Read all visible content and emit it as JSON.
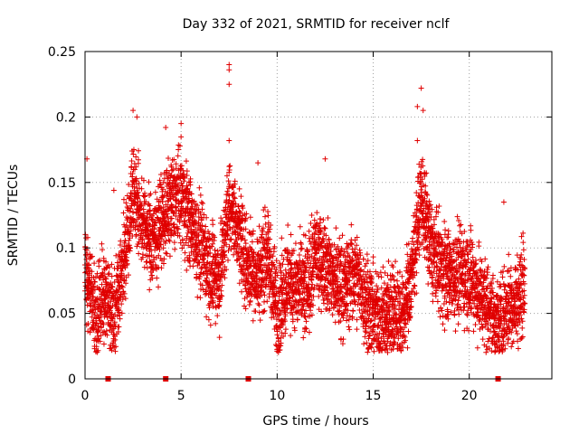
{
  "chart_data": {
    "type": "scatter",
    "title": "Day 332 of 2021, SRMTID for receiver nclf",
    "xlabel": "GPS time / hours",
    "ylabel": "SRMTID / TECUs",
    "xlim": [
      0,
      24.3
    ],
    "ylim": [
      0,
      0.25
    ],
    "x_ticks": [
      "0",
      "5",
      "10",
      "15",
      "20"
    ],
    "y_ticks": [
      "0",
      "0.05",
      "0.1",
      "0.15",
      "0.2",
      "0.25"
    ],
    "grid": true,
    "legend": "none",
    "marker": "plus",
    "color": "#e00000",
    "gap_markers_x": [
      1.2,
      4.2,
      8.5,
      21.5
    ],
    "profile": [
      {
        "x": 0.0,
        "y": 0.085
      },
      {
        "x": 0.3,
        "y": 0.065
      },
      {
        "x": 0.6,
        "y": 0.045
      },
      {
        "x": 1.0,
        "y": 0.065
      },
      {
        "x": 1.5,
        "y": 0.05
      },
      {
        "x": 2.0,
        "y": 0.09
      },
      {
        "x": 2.5,
        "y": 0.145
      },
      {
        "x": 3.0,
        "y": 0.12
      },
      {
        "x": 3.5,
        "y": 0.105
      },
      {
        "x": 4.0,
        "y": 0.12
      },
      {
        "x": 4.5,
        "y": 0.135
      },
      {
        "x": 5.0,
        "y": 0.14
      },
      {
        "x": 5.5,
        "y": 0.12
      },
      {
        "x": 6.0,
        "y": 0.1
      },
      {
        "x": 6.5,
        "y": 0.085
      },
      {
        "x": 7.0,
        "y": 0.075
      },
      {
        "x": 7.5,
        "y": 0.135
      },
      {
        "x": 8.0,
        "y": 0.11
      },
      {
        "x": 8.5,
        "y": 0.085
      },
      {
        "x": 9.0,
        "y": 0.08
      },
      {
        "x": 9.5,
        "y": 0.095
      },
      {
        "x": 10.0,
        "y": 0.05
      },
      {
        "x": 10.5,
        "y": 0.075
      },
      {
        "x": 11.0,
        "y": 0.07
      },
      {
        "x": 11.5,
        "y": 0.065
      },
      {
        "x": 12.0,
        "y": 0.095
      },
      {
        "x": 12.5,
        "y": 0.09
      },
      {
        "x": 13.0,
        "y": 0.075
      },
      {
        "x": 13.5,
        "y": 0.07
      },
      {
        "x": 14.0,
        "y": 0.08
      },
      {
        "x": 14.5,
        "y": 0.065
      },
      {
        "x": 15.0,
        "y": 0.05
      },
      {
        "x": 15.5,
        "y": 0.045
      },
      {
        "x": 16.0,
        "y": 0.055
      },
      {
        "x": 16.5,
        "y": 0.045
      },
      {
        "x": 17.0,
        "y": 0.08
      },
      {
        "x": 17.5,
        "y": 0.14
      },
      {
        "x": 18.0,
        "y": 0.1
      },
      {
        "x": 18.5,
        "y": 0.085
      },
      {
        "x": 19.0,
        "y": 0.08
      },
      {
        "x": 19.5,
        "y": 0.08
      },
      {
        "x": 20.0,
        "y": 0.08
      },
      {
        "x": 20.5,
        "y": 0.065
      },
      {
        "x": 21.0,
        "y": 0.055
      },
      {
        "x": 21.5,
        "y": 0.04
      },
      {
        "x": 22.0,
        "y": 0.055
      },
      {
        "x": 22.5,
        "y": 0.06
      },
      {
        "x": 22.9,
        "y": 0.075
      }
    ],
    "peaks": [
      {
        "x": 0.1,
        "y": 0.168
      },
      {
        "x": 1.5,
        "y": 0.144
      },
      {
        "x": 2.5,
        "y": 0.205
      },
      {
        "x": 2.7,
        "y": 0.2
      },
      {
        "x": 4.2,
        "y": 0.192
      },
      {
        "x": 5.0,
        "y": 0.195
      },
      {
        "x": 7.5,
        "y": 0.24
      },
      {
        "x": 7.5,
        "y": 0.236
      },
      {
        "x": 7.5,
        "y": 0.225
      },
      {
        "x": 7.5,
        "y": 0.182
      },
      {
        "x": 9.0,
        "y": 0.165
      },
      {
        "x": 12.5,
        "y": 0.168
      },
      {
        "x": 17.5,
        "y": 0.222
      },
      {
        "x": 17.3,
        "y": 0.208
      },
      {
        "x": 17.6,
        "y": 0.205
      },
      {
        "x": 17.3,
        "y": 0.182
      },
      {
        "x": 21.8,
        "y": 0.135
      }
    ]
  }
}
